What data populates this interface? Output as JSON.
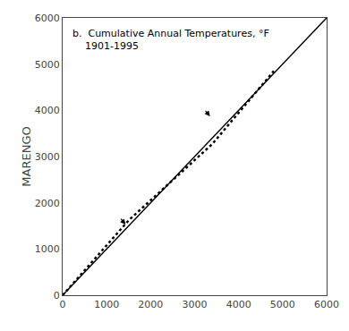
{
  "chart_data": {
    "type": "line",
    "title": "b.  Cumulative Annual Temperatures, °F",
    "subtitle": "    1901-1995",
    "y_label": "MARENGO",
    "series": [
      {
        "x": [
          0,
          6000
        ],
        "values": [
          0,
          6000
        ],
        "color": "#000000",
        "line_style": "solid"
      },
      {
        "x": [
          0,
          1500,
          3400,
          4800
        ],
        "values": [
          0,
          1620,
          3270,
          4850
        ],
        "color": "#000000",
        "line_style": "dotted"
      }
    ],
    "arrows": [
      {
        "to": [
          1430,
          1530
        ],
        "from": [
          1300,
          1680
        ]
      },
      {
        "to": [
          3350,
          3870
        ],
        "from": [
          3220,
          4020
        ]
      }
    ],
    "xlim": [
      0,
      6000
    ],
    "ylim": [
      0,
      6000
    ],
    "xticks": [
      0,
      1000,
      2000,
      3000,
      4000,
      5000,
      6000
    ],
    "yticks": [
      0,
      1000,
      2000,
      3000,
      4000,
      5000,
      6000
    ],
    "grid": false
  }
}
